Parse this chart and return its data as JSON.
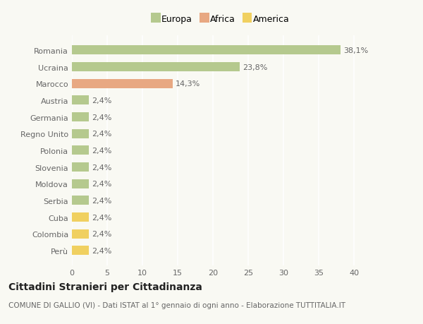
{
  "categories": [
    "Romania",
    "Ucraina",
    "Marocco",
    "Austria",
    "Germania",
    "Regno Unito",
    "Polonia",
    "Slovenia",
    "Moldova",
    "Serbia",
    "Cuba",
    "Colombia",
    "Perù"
  ],
  "values": [
    38.1,
    23.8,
    14.3,
    2.4,
    2.4,
    2.4,
    2.4,
    2.4,
    2.4,
    2.4,
    2.4,
    2.4,
    2.4
  ],
  "labels": [
    "38,1%",
    "23,8%",
    "14,3%",
    "2,4%",
    "2,4%",
    "2,4%",
    "2,4%",
    "2,4%",
    "2,4%",
    "2,4%",
    "2,4%",
    "2,4%",
    "2,4%"
  ],
  "colors": [
    "#b5c98e",
    "#b5c98e",
    "#e8a882",
    "#b5c98e",
    "#b5c98e",
    "#b5c98e",
    "#b5c98e",
    "#b5c98e",
    "#b5c98e",
    "#b5c98e",
    "#f0d060",
    "#f0d060",
    "#f0d060"
  ],
  "legend_items": [
    {
      "label": "Europa",
      "color": "#b5c98e"
    },
    {
      "label": "Africa",
      "color": "#e8a882"
    },
    {
      "label": "America",
      "color": "#f0d060"
    }
  ],
  "xlim": [
    0,
    42
  ],
  "xticks": [
    0,
    5,
    10,
    15,
    20,
    25,
    30,
    35,
    40
  ],
  "title": "Cittadini Stranieri per Cittadinanza",
  "subtitle": "COMUNE DI GALLIO (VI) - Dati ISTAT al 1° gennaio di ogni anno - Elaborazione TUTTITALIA.IT",
  "background_color": "#f9f9f3",
  "bar_height": 0.55,
  "grid_color": "#ffffff",
  "title_fontsize": 10,
  "subtitle_fontsize": 7.5,
  "tick_fontsize": 8,
  "label_fontsize": 8,
  "legend_fontsize": 9
}
